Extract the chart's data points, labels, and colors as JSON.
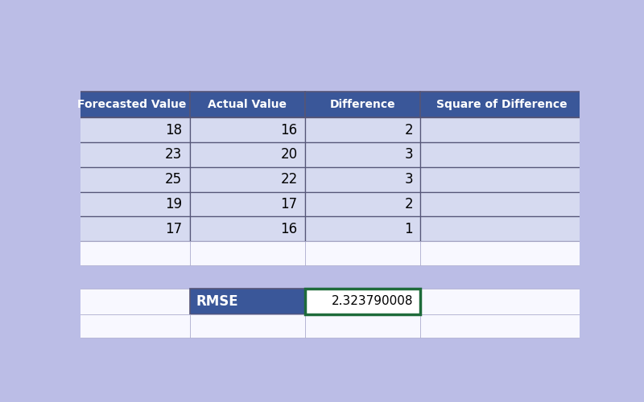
{
  "background_color": "#bbbde6",
  "header_bg": "#3a5799",
  "header_text_color": "#ffffff",
  "data_row_bg": "#d6daf0",
  "white_bg": "#f0f2fa",
  "blank_row_bg": "#f8f8ff",
  "rmse_header_bg": "#3a5799",
  "rmse_value_border": "#1e6b3a",
  "dark_line": "#555577",
  "light_line": "#aaaacc",
  "headers": [
    "Forecasted Value",
    "Actual Value",
    "Difference",
    "Square of Difference"
  ],
  "rows": [
    [
      18,
      16,
      2,
      ""
    ],
    [
      23,
      20,
      3,
      ""
    ],
    [
      25,
      22,
      3,
      ""
    ],
    [
      19,
      17,
      2,
      ""
    ],
    [
      17,
      16,
      1,
      ""
    ]
  ],
  "rmse_label": "RMSE",
  "rmse_value": "2.323790008",
  "font_size_header": 10,
  "font_size_data": 12,
  "font_size_rmse": 11
}
